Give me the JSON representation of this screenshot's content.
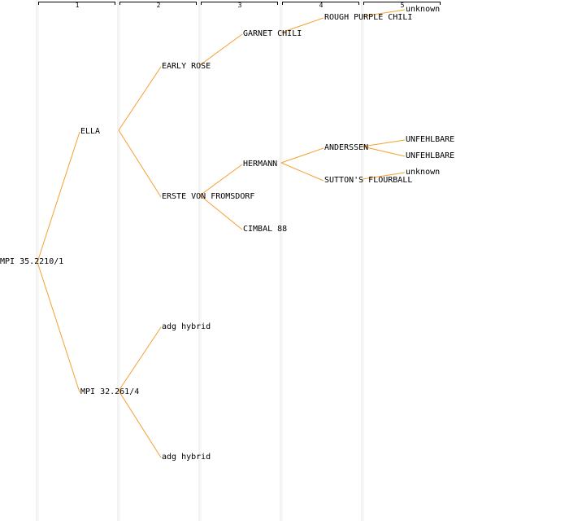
{
  "generations": [
    {
      "label": "1"
    },
    {
      "label": "2"
    },
    {
      "label": "3"
    },
    {
      "label": "4"
    },
    {
      "label": "5"
    }
  ],
  "colors": {
    "edge": "#f5a030",
    "column_divider": "#e4e4e4",
    "bracket": "#000000",
    "text": "#000000"
  },
  "nodes": {
    "root": "MPI 35.2210/1",
    "ella": "ELLA",
    "mpi_32_261_4": "MPI 32.261/4",
    "early_rose": "EARLY ROSE",
    "erste_von_fromsdorf": "ERSTE VON FROMSDORF",
    "adg_hybrid_1": "adg hybrid",
    "adg_hybrid_2": "adg hybrid",
    "garnet_chili": "GARNET CHILI",
    "hermann": "HERMANN",
    "cimbal_88": "CIMBAL 88",
    "rough_purple_chili": "ROUGH PURPLE CHILI",
    "anderssen": "ANDERSSEN",
    "suttons_flourball": "SUTTON'S FLOURBALL",
    "unknown_1": "unknown",
    "unfehlbare_1": "UNFEHLBARE",
    "unfehlbare_2": "UNFEHLBARE",
    "unknown_2": "unknown"
  }
}
